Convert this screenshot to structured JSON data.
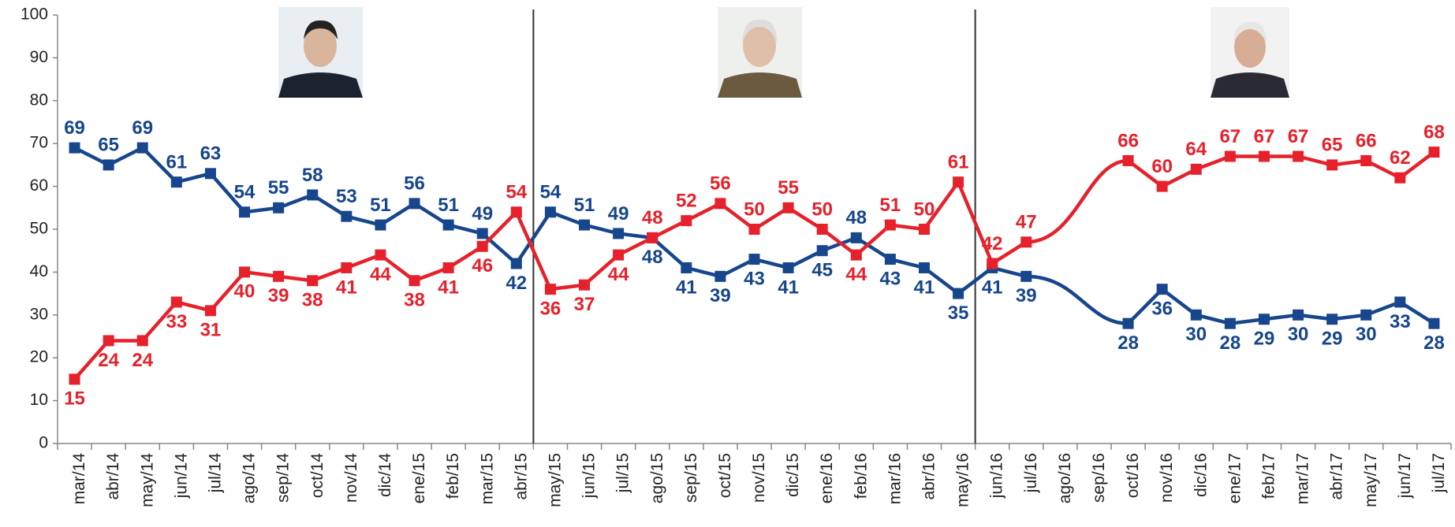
{
  "chart_data": {
    "type": "line",
    "categories": [
      "mar/14",
      "abr/14",
      "may/14",
      "jun/14",
      "jul/14",
      "ago/14",
      "sep/14",
      "oct/14",
      "nov/14",
      "dic/14",
      "ene/15",
      "feb/15",
      "mar/15",
      "abr/15",
      "may/15",
      "jun/15",
      "jul/15",
      "ago/15",
      "sep/15",
      "oct/15",
      "nov/15",
      "dic/15",
      "ene/16",
      "feb/16",
      "mar/16",
      "abr/16",
      "may/16",
      "jun/16",
      "jul/16",
      "ago/16",
      "sep/16",
      "oct/16",
      "nov/16",
      "dic/16",
      "ene/17",
      "feb/17",
      "mar/17",
      "abr/17",
      "may/17",
      "jun/17",
      "jul/17"
    ],
    "series": [
      {
        "color": "#17468c",
        "values": [
          69,
          65,
          69,
          61,
          63,
          54,
          55,
          58,
          53,
          51,
          56,
          51,
          49,
          42,
          54,
          51,
          49,
          48,
          41,
          39,
          43,
          41,
          45,
          48,
          43,
          41,
          35,
          41,
          39,
          null,
          null,
          28,
          36,
          30,
          28,
          29,
          30,
          29,
          30,
          33,
          28
        ]
      },
      {
        "color": "#e6212b",
        "values": [
          15,
          24,
          24,
          33,
          31,
          40,
          39,
          38,
          41,
          44,
          38,
          41,
          46,
          54,
          36,
          37,
          44,
          48,
          52,
          56,
          50,
          55,
          50,
          44,
          51,
          50,
          61,
          42,
          47,
          null,
          null,
          66,
          60,
          64,
          67,
          67,
          67,
          65,
          66,
          62,
          68
        ]
      }
    ],
    "ylim": [
      0,
      100
    ],
    "yticks": [
      0,
      10,
      20,
      30,
      40,
      50,
      60,
      70,
      80,
      90,
      100
    ]
  }
}
